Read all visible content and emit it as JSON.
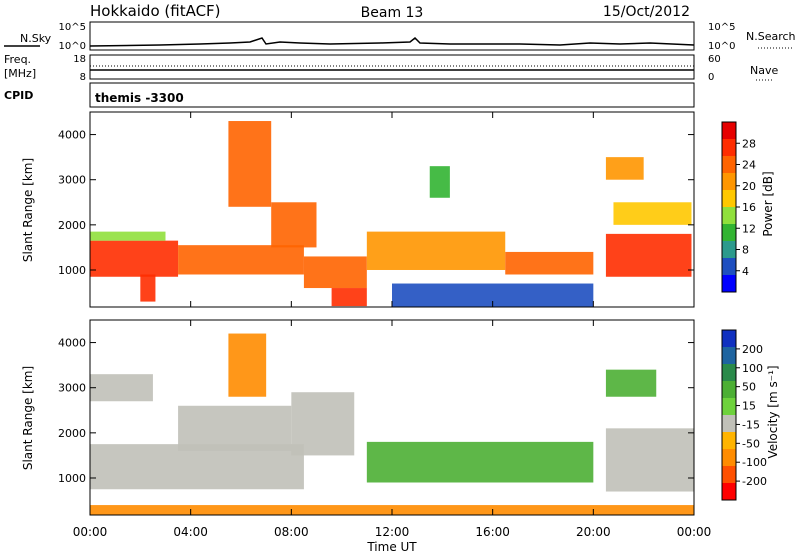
{
  "header": {
    "station": "Hokkaido (fitACF)",
    "beam": "Beam 13",
    "date": "15/Oct/2012"
  },
  "panels": {
    "nsky": {
      "label": "N.Sky",
      "ticks": [
        "10^5",
        "10^0"
      ],
      "right_ticks": [
        "10^5",
        "10^0"
      ],
      "right_label": "N.Search"
    },
    "freq": {
      "label_line1": "Freq.",
      "label_line2": "[MHz]",
      "ticks": [
        "18",
        "8"
      ],
      "right_ticks": [
        "60",
        "0"
      ],
      "right_label": "Nave"
    },
    "cpid": {
      "label": "CPID",
      "value": "themis -3300"
    }
  },
  "xaxis": {
    "label": "Time UT",
    "ticks": [
      "00:00",
      "04:00",
      "08:00",
      "12:00",
      "16:00",
      "20:00",
      "00:00"
    ]
  },
  "chart_data": [
    {
      "type": "heatmap",
      "title": "",
      "xlabel": "Time UT",
      "ylabel": "Slant Range [km]",
      "xlim": [
        0,
        24
      ],
      "ylim": [
        180,
        4500
      ],
      "yticks": [
        1000,
        2000,
        3000,
        4000
      ],
      "colorbar": {
        "label": "Power [dB]",
        "ticks": [
          "4",
          "8",
          "12",
          "16",
          "20",
          "24",
          "28"
        ],
        "colors": [
          "#0000ff",
          "#1e4fc0",
          "#2c9a8c",
          "#32b432",
          "#90e03c",
          "#ffc800",
          "#ff9600",
          "#ff6400",
          "#ff2d00",
          "#e60000"
        ]
      },
      "regions": [
        {
          "x": [
            0.0,
            3.5
          ],
          "y": [
            850,
            1650
          ],
          "value": 27
        },
        {
          "x": [
            0.0,
            3.0
          ],
          "y": [
            1650,
            1850
          ],
          "value": 14
        },
        {
          "x": [
            2.0,
            2.6
          ],
          "y": [
            300,
            900
          ],
          "value": 30
        },
        {
          "x": [
            3.5,
            8.5
          ],
          "y": [
            900,
            1550
          ],
          "value": 26
        },
        {
          "x": [
            5.5,
            7.2
          ],
          "y": [
            2400,
            4300
          ],
          "value": 26
        },
        {
          "x": [
            7.2,
            9.0
          ],
          "y": [
            1500,
            2500
          ],
          "value": 25
        },
        {
          "x": [
            8.5,
            11.0
          ],
          "y": [
            600,
            1300
          ],
          "value": 24
        },
        {
          "x": [
            9.6,
            11.0
          ],
          "y": [
            200,
            600
          ],
          "value": 30
        },
        {
          "x": [
            11.0,
            16.5
          ],
          "y": [
            1000,
            1850
          ],
          "value": 22
        },
        {
          "x": [
            16.5,
            20.0
          ],
          "y": [
            900,
            1400
          ],
          "value": 24
        },
        {
          "x": [
            12.0,
            20.0
          ],
          "y": [
            180,
            700
          ],
          "value": 6
        },
        {
          "x": [
            20.5,
            23.9
          ],
          "y": [
            850,
            1800
          ],
          "value": 28
        },
        {
          "x": [
            20.8,
            23.9
          ],
          "y": [
            2000,
            2500
          ],
          "value": 20
        },
        {
          "x": [
            20.5,
            22.0
          ],
          "y": [
            3000,
            3500
          ],
          "value": 22
        },
        {
          "x": [
            13.5,
            14.3
          ],
          "y": [
            2600,
            3300
          ],
          "value": 12
        }
      ]
    },
    {
      "type": "heatmap",
      "title": "",
      "xlabel": "Time UT",
      "ylabel": "Slant Range [km]",
      "xlim": [
        0,
        24
      ],
      "ylim": [
        180,
        4500
      ],
      "yticks": [
        1000,
        2000,
        3000,
        4000
      ],
      "colorbar": {
        "label": "Velocity [m s⁻¹]",
        "ticks": [
          "200",
          "100",
          "50",
          "15",
          "-15",
          "-50",
          "-100",
          "-200"
        ],
        "colors": [
          "#1030c0",
          "#1e64a0",
          "#2a8a4a",
          "#4caf34",
          "#6ed23c",
          "#c0c0b8",
          "#ffb400",
          "#ff8c00",
          "#ff5000",
          "#ff0000"
        ]
      },
      "ground_scatter_value": 0,
      "regions": [
        {
          "x": [
            0.0,
            8.5
          ],
          "y": [
            750,
            1750
          ],
          "value": 0
        },
        {
          "x": [
            0.0,
            2.5
          ],
          "y": [
            2700,
            3300
          ],
          "value": 0
        },
        {
          "x": [
            3.5,
            8.0
          ],
          "y": [
            1600,
            2600
          ],
          "value": 0
        },
        {
          "x": [
            8.0,
            10.5
          ],
          "y": [
            1500,
            2900
          ],
          "value": 0
        },
        {
          "x": [
            5.5,
            7.0
          ],
          "y": [
            2800,
            4200
          ],
          "value": -60
        },
        {
          "x": [
            11.0,
            20.0
          ],
          "y": [
            900,
            1800
          ],
          "value": 40
        },
        {
          "x": [
            20.5,
            24.0
          ],
          "y": [
            700,
            2100
          ],
          "value": 0
        },
        {
          "x": [
            20.5,
            22.5
          ],
          "y": [
            2800,
            3400
          ],
          "value": 30
        },
        {
          "x": [
            0.0,
            24.0
          ],
          "y": [
            180,
            400
          ],
          "value": -80
        }
      ]
    }
  ]
}
